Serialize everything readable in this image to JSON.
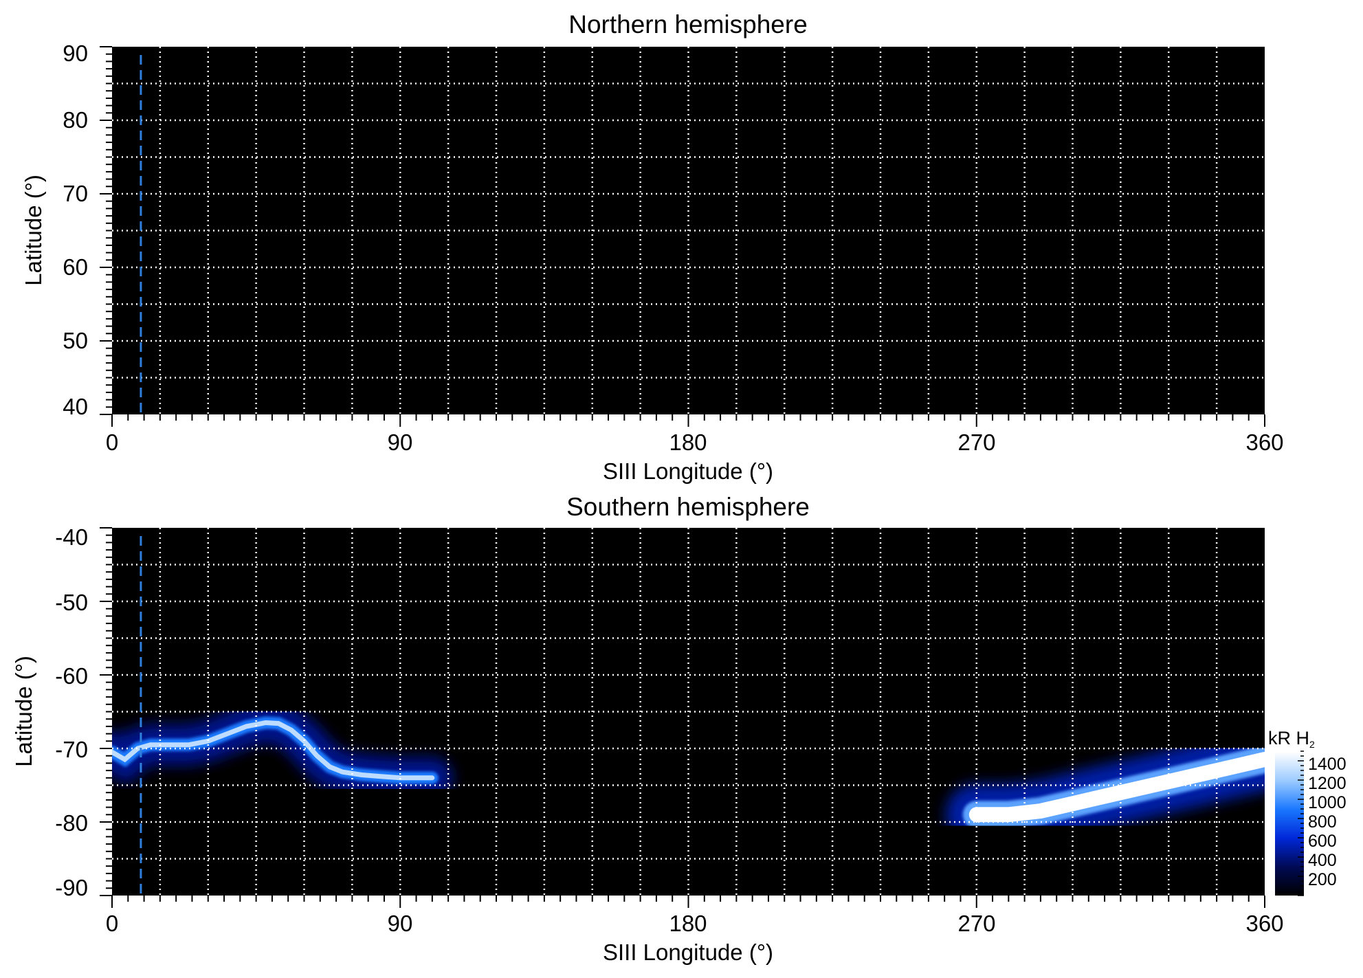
{
  "chart_data": [
    {
      "type": "heatmap",
      "title": "Northern hemisphere",
      "xlabel": "SIII Longitude (°)",
      "ylabel": "Latitude (°)",
      "xlim": [
        0,
        360
      ],
      "ylim": [
        40,
        90
      ],
      "x_ticks": [
        "0",
        "90",
        "180",
        "270",
        "360"
      ],
      "y_ticks": [
        "90",
        "80",
        "70",
        "60",
        "50",
        "40"
      ],
      "grid": true,
      "grid_style": "dotted white, every 15° longitude and 5° latitude",
      "marker_longitude": 9,
      "emission": []
    },
    {
      "type": "heatmap",
      "title": "Southern hemisphere",
      "xlabel": "SIII Longitude (°)",
      "ylabel": "Latitude (°)",
      "xlim": [
        0,
        360
      ],
      "ylim": [
        -90,
        -40
      ],
      "x_ticks": [
        "0",
        "90",
        "180",
        "270",
        "360"
      ],
      "y_ticks": [
        "-40",
        "-50",
        "-60",
        "-70",
        "-80",
        "-90"
      ],
      "grid": true,
      "grid_style": "dotted white, every 15° longitude and 5° latitude",
      "marker_longitude": 9,
      "emission": [
        {
          "lon": [
            0,
            4,
            8,
            12,
            18,
            24,
            30,
            36,
            42,
            48,
            52,
            56,
            60,
            64,
            68,
            72,
            78,
            84,
            90,
            96,
            100
          ],
          "lat": [
            -70.5,
            -71.5,
            -70,
            -69.5,
            -69.5,
            -69.5,
            -69,
            -68,
            -67,
            -66.5,
            -66.6,
            -67.5,
            -69,
            -71,
            -72.5,
            -73.2,
            -73.6,
            -73.8,
            -74,
            -74,
            -74
          ],
          "intensity": 1300
        },
        {
          "lon": [
            270,
            280,
            290,
            300,
            310,
            320,
            330,
            340,
            350,
            360
          ],
          "lat": [
            -79,
            -79,
            -78.5,
            -77.5,
            -76.5,
            -75.5,
            -74.5,
            -73.5,
            -72.5,
            -71.5
          ],
          "intensity": 1500
        }
      ]
    }
  ],
  "colorbar": {
    "label": "kR H",
    "label_sub": "2",
    "ticks": [
      "200",
      "400",
      "600",
      "800",
      "1000",
      "1200",
      "1400"
    ],
    "range": [
      0,
      1500
    ],
    "colors": [
      "#000000",
      "#000a55",
      "#0028d8",
      "#1a78ff",
      "#9ccbff",
      "#ffffff"
    ]
  },
  "colors": {
    "background": "#000000",
    "grid": "#ffffff",
    "marker": "#2f7fdc"
  }
}
